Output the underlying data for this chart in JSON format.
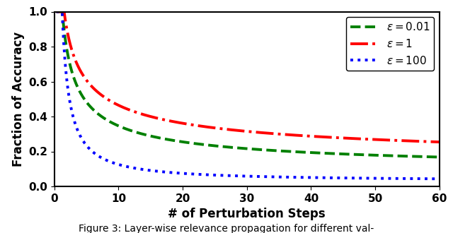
{
  "title": "",
  "xlabel": "# of Perturbation Steps",
  "ylabel": "Fraction of Accuracy",
  "xlim": [
    0,
    60
  ],
  "ylim": [
    0,
    1.0
  ],
  "xticks": [
    0,
    10,
    20,
    30,
    40,
    50,
    60
  ],
  "yticks": [
    0.0,
    0.2,
    0.4,
    0.6,
    0.8,
    1.0
  ],
  "series": [
    {
      "label": "$\\varepsilon = 0.01$",
      "color": "#008000",
      "linestyle": "--",
      "linewidth": 2.8,
      "A": 1.05,
      "b": 0.58,
      "c": 0.07
    },
    {
      "label": "$\\varepsilon = 1$",
      "color": "#ff0000",
      "linestyle": "-.",
      "linewidth": 2.8,
      "A": 1.1,
      "b": 0.48,
      "c": 0.1
    },
    {
      "label": "$\\varepsilon = 100$",
      "color": "#0000ff",
      "linestyle": ":",
      "linewidth": 2.8,
      "A": 1.2,
      "b": 1.1,
      "c": 0.03
    }
  ],
  "legend_loc": "upper right",
  "legend_fontsize": 11,
  "axis_fontsize": 12,
  "tick_fontsize": 11,
  "background_color": "#ffffff",
  "figure_caption": "Figure 3: Layer-wise relevance propagation for different val-"
}
